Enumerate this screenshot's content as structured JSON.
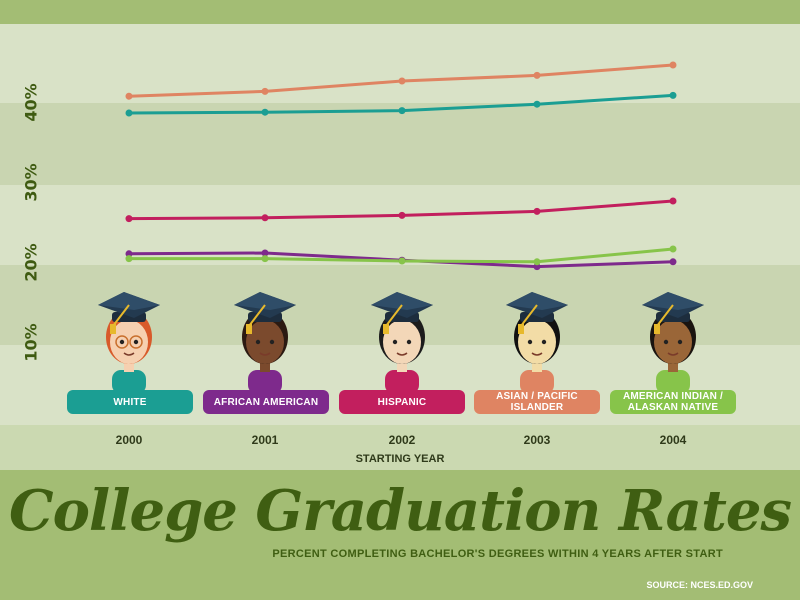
{
  "chart_data": {
    "type": "line",
    "title": "College Graduation Rates",
    "subtitle": "PERCENT COMPLETING BACHELOR'S DEGREES WITHIN 4 YEARS AFTER START",
    "xlabel": "STARTING YEAR",
    "ylabel": "",
    "x": [
      "2000",
      "2001",
      "2002",
      "2003",
      "2004"
    ],
    "ylim": [
      0,
      47
    ],
    "yticks": [
      "10%",
      "20%",
      "30%",
      "40%"
    ],
    "series": [
      {
        "name": "WHITE",
        "values": [
          39,
          39.1,
          39.3,
          40.1,
          41.2
        ]
      },
      {
        "name": "AFRICAN AMERICAN",
        "values": [
          21.4,
          21.5,
          20.6,
          19.8,
          20.4
        ]
      },
      {
        "name": "HISPANIC",
        "values": [
          25.8,
          25.9,
          26.2,
          26.7,
          28
        ]
      },
      {
        "name": "ASIAN / PACIFIC ISLANDER",
        "values": [
          41.1,
          41.7,
          43,
          43.7,
          45
        ]
      },
      {
        "name": "AMERICAN INDIAN / ALASKAN NATIVE",
        "values": [
          20.8,
          20.8,
          20.5,
          20.4,
          22
        ]
      }
    ],
    "grid": true,
    "legend": "bottom"
  },
  "colors": {
    "WHITE": "#1b9e93",
    "AFRICAN AMERICAN": "#7e2a8c",
    "HISPANIC": "#c21f5e",
    "ASIAN / PACIFIC ISLANDER": "#df8462",
    "AMERICAN INDIAN / ALASKAN NATIVE": "#87c44a"
  },
  "icons": [
    "graduate-white-icon",
    "graduate-african-american-icon",
    "graduate-hispanic-icon",
    "graduate-asian-icon",
    "graduate-american-indian-icon"
  ],
  "source": "SOURCE: NCES.ED.GOV"
}
